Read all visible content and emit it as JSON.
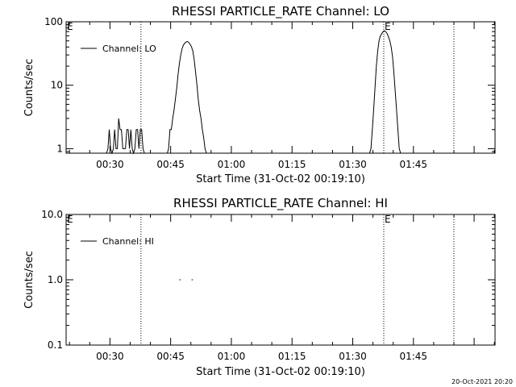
{
  "footer": {
    "timestamp": "20-Oct-2021 20:20"
  },
  "chart_data": [
    {
      "type": "line",
      "title": "RHESSI PARTICLE_RATE Channel: LO",
      "xlabel": "Start Time (31-Oct-02 00:19:10)",
      "ylabel": "Counts/sec",
      "yscale": "log",
      "ylim": [
        0.85,
        100
      ],
      "xlim": [
        "00:19:10",
        "02:05:10"
      ],
      "x_ticks": [
        "00:30",
        "00:45",
        "01:00",
        "01:15",
        "01:30",
        "01:45"
      ],
      "y_ticks": [
        "1",
        "10",
        "100"
      ],
      "vertical_markers": [
        "00:37:40",
        "01:37:40",
        "01:55:00"
      ],
      "marker_labels": [
        {
          "text": "E",
          "x": "00:19:10"
        },
        {
          "text": "E",
          "x": "01:37:40"
        }
      ],
      "legend": {
        "entries": [
          "Channel: LO"
        ],
        "position": "top-left"
      },
      "series": [
        {
          "name": "Channel: LO",
          "points": [
            [
              "00:29:10",
              0.85
            ],
            [
              "00:29:30",
              1
            ],
            [
              "00:29:50",
              2
            ],
            [
              "00:30:10",
              1
            ],
            [
              "00:30:30",
              0.85
            ],
            [
              "00:30:50",
              1
            ],
            [
              "00:31:10",
              2
            ],
            [
              "00:31:30",
              1
            ],
            [
              "00:31:50",
              1
            ],
            [
              "00:32:10",
              3
            ],
            [
              "00:32:30",
              2
            ],
            [
              "00:32:50",
              2
            ],
            [
              "00:33:10",
              1
            ],
            [
              "00:33:30",
              1
            ],
            [
              "00:33:50",
              1
            ],
            [
              "00:34:10",
              2
            ],
            [
              "00:34:30",
              2
            ],
            [
              "00:34:50",
              1
            ],
            [
              "00:35:10",
              2
            ],
            [
              "00:35:30",
              1
            ],
            [
              "00:35:50",
              0.85
            ],
            [
              "00:36:10",
              1
            ],
            [
              "00:36:30",
              2
            ],
            [
              "00:36:50",
              2
            ],
            [
              "00:37:10",
              1
            ],
            [
              "00:37:30",
              2
            ],
            [
              "00:37:50",
              2
            ],
            [
              "00:38:10",
              1
            ],
            [
              "00:38:30",
              0.85
            ],
            [
              "00:44:10",
              0.85
            ],
            [
              "00:44:30",
              1
            ],
            [
              "00:44:50",
              2
            ],
            [
              "00:45:10",
              2
            ],
            [
              "00:45:30",
              3
            ],
            [
              "00:45:50",
              4
            ],
            [
              "00:46:10",
              6
            ],
            [
              "00:46:30",
              9
            ],
            [
              "00:46:50",
              15
            ],
            [
              "00:47:10",
              22
            ],
            [
              "00:47:30",
              30
            ],
            [
              "00:47:50",
              38
            ],
            [
              "00:48:10",
              43
            ],
            [
              "00:48:30",
              46
            ],
            [
              "00:48:50",
              48
            ],
            [
              "00:49:10",
              49
            ],
            [
              "00:49:30",
              47
            ],
            [
              "00:49:50",
              44
            ],
            [
              "00:50:10",
              40
            ],
            [
              "00:50:30",
              34
            ],
            [
              "00:50:50",
              25
            ],
            [
              "00:51:10",
              16
            ],
            [
              "00:51:30",
              10
            ],
            [
              "00:51:50",
              6
            ],
            [
              "00:52:10",
              4
            ],
            [
              "00:52:30",
              3
            ],
            [
              "00:52:50",
              2
            ],
            [
              "00:53:10",
              1.5
            ],
            [
              "00:53:30",
              1
            ],
            [
              "00:53:50",
              0.85
            ],
            [
              "01:34:10",
              0.85
            ],
            [
              "01:34:30",
              1
            ],
            [
              "01:34:50",
              2
            ],
            [
              "01:35:10",
              4
            ],
            [
              "01:35:30",
              9
            ],
            [
              "01:35:50",
              20
            ],
            [
              "01:36:10",
              35
            ],
            [
              "01:36:30",
              50
            ],
            [
              "01:36:50",
              60
            ],
            [
              "01:37:10",
              65
            ],
            [
              "01:37:30",
              70
            ],
            [
              "01:37:50",
              72
            ],
            [
              "01:38:10",
              70
            ],
            [
              "01:38:30",
              65
            ],
            [
              "01:38:50",
              58
            ],
            [
              "01:39:10",
              50
            ],
            [
              "01:39:30",
              40
            ],
            [
              "01:39:50",
              28
            ],
            [
              "01:40:10",
              16
            ],
            [
              "01:40:30",
              8
            ],
            [
              "01:40:50",
              4
            ],
            [
              "01:41:10",
              2
            ],
            [
              "01:41:30",
              1
            ],
            [
              "01:41:50",
              0.85
            ]
          ]
        }
      ]
    },
    {
      "type": "line",
      "title": "RHESSI PARTICLE_RATE Channel: HI",
      "xlabel": "Start Time (31-Oct-02 00:19:10)",
      "ylabel": "Counts/sec",
      "yscale": "log",
      "ylim": [
        0.1,
        10
      ],
      "xlim": [
        "00:19:10",
        "02:05:10"
      ],
      "x_ticks": [
        "00:30",
        "00:45",
        "01:00",
        "01:15",
        "01:30",
        "01:45"
      ],
      "y_ticks": [
        "0.1",
        "1.0",
        "10.0"
      ],
      "vertical_markers": [
        "00:37:40",
        "01:37:40",
        "01:55:00"
      ],
      "marker_labels": [
        {
          "text": "E",
          "x": "00:19:10"
        },
        {
          "text": "E",
          "x": "01:37:40"
        }
      ],
      "legend": {
        "entries": [
          "Channel: HI"
        ],
        "position": "top-left"
      },
      "series": [
        {
          "name": "Channel: HI",
          "segments": [
            [
              [
                "00:47:10",
                1
              ],
              [
                "00:47:30",
                1
              ]
            ],
            [
              [
                "00:50:10",
                1
              ],
              [
                "00:50:30",
                1
              ]
            ]
          ]
        }
      ]
    }
  ]
}
